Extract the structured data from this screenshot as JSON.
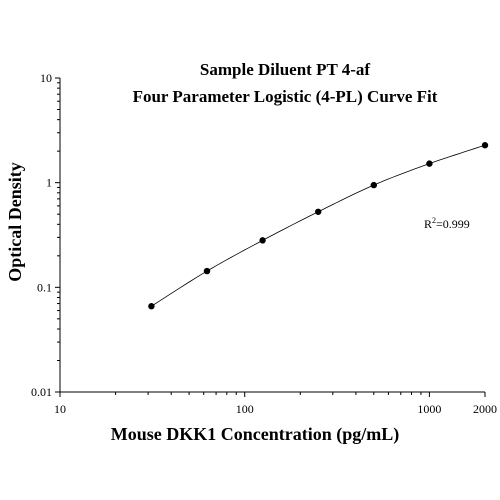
{
  "chart_data": {
    "type": "scatter",
    "title": "Sample Diluent PT 4-af",
    "subtitle": "Four Parameter Logistic (4-PL) Curve Fit",
    "xlabel": "Mouse DKK1 Concentration (pg/mL)",
    "ylabel": "Optical Density",
    "x_scale": "log",
    "y_scale": "log",
    "xlim": [
      10,
      2000
    ],
    "ylim": [
      0.01,
      10
    ],
    "x_ticks": [
      {
        "value": 10,
        "label": "10"
      },
      {
        "value": 100,
        "label": "100"
      },
      {
        "value": 1000,
        "label": "1000"
      },
      {
        "value": 2000,
        "label": "2000"
      }
    ],
    "y_ticks": [
      {
        "value": 0.01,
        "label": "0.01"
      },
      {
        "value": 0.1,
        "label": "0.1"
      },
      {
        "value": 1,
        "label": "1"
      },
      {
        "value": 10,
        "label": "10"
      }
    ],
    "grid": false,
    "series": [
      {
        "x": [
          31.25,
          62.5,
          125,
          250,
          500,
          1000,
          2000
        ],
        "y": [
          0.066,
          0.143,
          0.281,
          0.527,
          0.948,
          1.52,
          2.28
        ]
      }
    ],
    "annotation": {
      "r_label": "R",
      "r_exponent": "2",
      "r_value": "=0.999"
    }
  }
}
